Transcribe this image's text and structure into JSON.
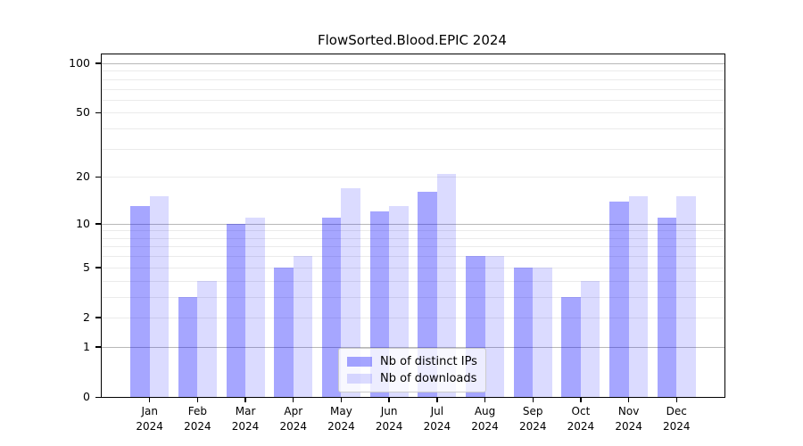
{
  "chart_data": {
    "type": "bar",
    "title": "FlowSorted.Blood.EPIC 2024",
    "categories": [
      "Jan",
      "Feb",
      "Mar",
      "Apr",
      "May",
      "Jun",
      "Jul",
      "Aug",
      "Sep",
      "Oct",
      "Nov",
      "Dec"
    ],
    "x_year_label": "2024",
    "series": [
      {
        "name": "Nb of distinct IPs",
        "color": "rgba(0,0,255,0.35)",
        "values": [
          13,
          3,
          10,
          5,
          11,
          12,
          16,
          6,
          5,
          3,
          14,
          11
        ]
      },
      {
        "name": "Nb of downloads",
        "color": "rgba(0,0,255,0.14)",
        "values": [
          15,
          4,
          11,
          6,
          17,
          13,
          21,
          6,
          5,
          4,
          15,
          15
        ]
      }
    ],
    "y_axis": {
      "scale": "log1p",
      "tick_values": [
        0,
        1,
        2,
        5,
        10,
        20,
        50,
        100
      ],
      "major_grid_values": [
        1,
        10,
        100
      ],
      "minor_grid_values": [
        2,
        3,
        4,
        5,
        6,
        7,
        8,
        9,
        20,
        30,
        40,
        50,
        60,
        70,
        80,
        90
      ],
      "ylim": [
        0,
        113
      ],
      "grid": true
    },
    "legend": {
      "position": "lower center"
    }
  }
}
